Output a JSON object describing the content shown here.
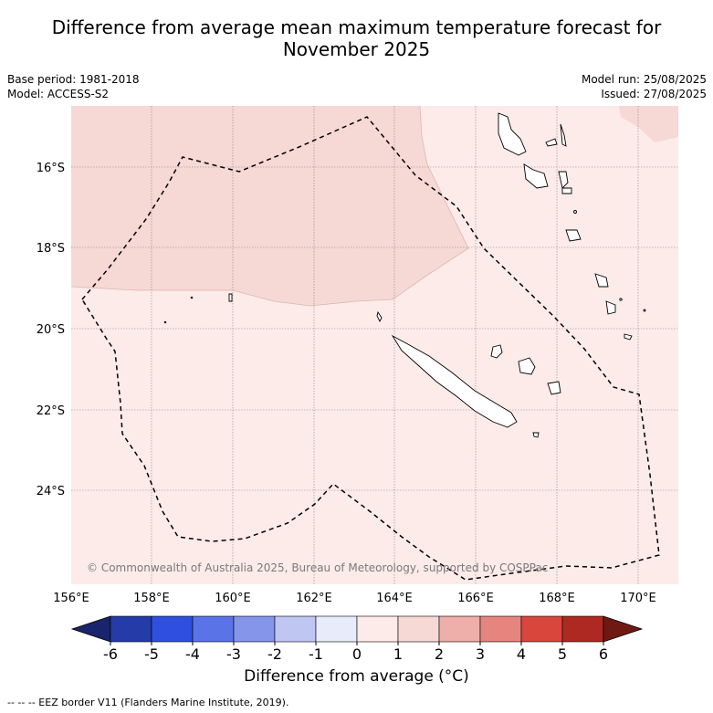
{
  "title_line1": "Difference from average mean maximum temperature forecast for",
  "title_line2": "November 2025",
  "meta": {
    "base_period": "Base period: 1981-2018",
    "model": "Model: ACCESS-S2",
    "model_run": "Model run: 25/08/2025",
    "issued": "Issued: 27/08/2025"
  },
  "map": {
    "lat_labels": [
      "16°S",
      "18°S",
      "20°S",
      "22°S",
      "24°S"
    ],
    "lon_labels": [
      "156°E",
      "158°E",
      "160°E",
      "162°E",
      "164°E",
      "166°E",
      "168°E",
      "170°E"
    ],
    "copyright": "© Commonwealth of Australia 2025, Bureau of Meteorology, supported by COSPPac",
    "zones": [
      {
        "label": "0 to 1",
        "color": "#fcebe9"
      },
      {
        "label": "1 to 2",
        "color": "#f6d8d5"
      }
    ]
  },
  "colorbar": {
    "ticks": [
      "-6",
      "-5",
      "-4",
      "-3",
      "-2",
      "-1",
      "0",
      "1",
      "2",
      "3",
      "4",
      "5",
      "6"
    ],
    "colors": [
      "#243ba8",
      "#2f4fe0",
      "#5a73e6",
      "#8495ea",
      "#bfc6f2",
      "#e8ebfa",
      "#fcebe9",
      "#f6d8d5",
      "#eeaea9",
      "#e5857e",
      "#d9463c",
      "#ad2921"
    ],
    "under_color": "#18246b",
    "over_color": "#6f1913",
    "label": "Difference from average (°C)"
  },
  "footer": "--  --  -- EEZ border V11 (Flanders Marine Institute, 2019)."
}
